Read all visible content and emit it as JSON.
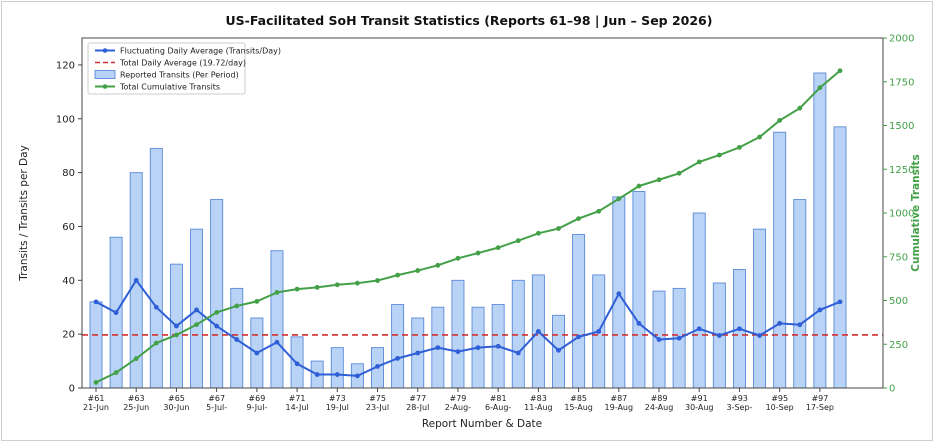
{
  "chart_data": {
    "type": "bar+line",
    "title": "US-Facilitated SoH Transit Statistics (Reports 61–98 | Jun – Sep 2026)",
    "xlabel": "Report Number & Date",
    "ylabel_left": "Transits / Transits per Day",
    "ylabel_right": "Cumulative Transits",
    "ylim_left": [
      0,
      130
    ],
    "ylim_right": [
      0,
      2000
    ],
    "yticks_left": [
      "0",
      "20",
      "40",
      "60",
      "80",
      "100",
      "120"
    ],
    "yticks_right": [
      "0",
      "250",
      "500",
      "750",
      "1000",
      "1250",
      "1500",
      "1750",
      "2000"
    ],
    "grid": false,
    "legend_position": "top-left",
    "x_tick_labels": [
      {
        "report": "#61",
        "date": "21-Jun"
      },
      {
        "report": "#63",
        "date": "25-Jun"
      },
      {
        "report": "#65",
        "date": "30-Jun"
      },
      {
        "report": "#67",
        "date": "5-Jul-"
      },
      {
        "report": "#69",
        "date": "9-Jul-"
      },
      {
        "report": "#71",
        "date": "14-Jul"
      },
      {
        "report": "#73",
        "date": "19-Jul"
      },
      {
        "report": "#75",
        "date": "23-Jul"
      },
      {
        "report": "#77",
        "date": "28-Jul"
      },
      {
        "report": "#79",
        "date": "2-Aug-"
      },
      {
        "report": "#81",
        "date": "6-Aug-"
      },
      {
        "report": "#83",
        "date": "11-Aug"
      },
      {
        "report": "#85",
        "date": "15-Aug"
      },
      {
        "report": "#87",
        "date": "19-Aug"
      },
      {
        "report": "#89",
        "date": "24-Aug"
      },
      {
        "report": "#91",
        "date": "30-Aug"
      },
      {
        "report": "#93",
        "date": "3-Sep-"
      },
      {
        "report": "#95",
        "date": "10-Sep"
      },
      {
        "report": "#97",
        "date": "17-Sep"
      }
    ],
    "series": [
      {
        "name": "Reported Transits (Per Period)",
        "type": "bar",
        "axis": "left",
        "color": "#b9d3f7",
        "edge_color": "#5b8ad6",
        "values": [
          32,
          56,
          80,
          89,
          46,
          59,
          70,
          37,
          26,
          51,
          19,
          10,
          15,
          9,
          15,
          31,
          26,
          30,
          40,
          30,
          31,
          40,
          42,
          27,
          57,
          42,
          71,
          73,
          36,
          37,
          65,
          39,
          44,
          59,
          95,
          70,
          117,
          97
        ]
      },
      {
        "name": "Fluctuating Daily Average (Transits/Day)",
        "type": "line",
        "axis": "left",
        "color": "#2f5fd6",
        "values": [
          32,
          28,
          40,
          30,
          23,
          29,
          23,
          18,
          13,
          17,
          9,
          5,
          5,
          4.5,
          8,
          11,
          13,
          15,
          13.5,
          15,
          15.5,
          13,
          21,
          14,
          19,
          21,
          35,
          24,
          18,
          18.5,
          22,
          19.5,
          22,
          19.5,
          24,
          23.5,
          29,
          32
        ]
      },
      {
        "name": "Total Daily Average (19.72/day)",
        "type": "hline",
        "axis": "left",
        "color": "#d32f2f",
        "value": 19.72
      },
      {
        "name": "Total Cumulative Transits",
        "type": "line",
        "axis": "right",
        "color": "#43a047",
        "values": [
          32,
          88,
          168,
          257,
          303,
          362,
          432,
          469,
          495,
          546,
          565,
          575,
          590,
          599,
          614,
          645,
          671,
          701,
          741,
          771,
          802,
          842,
          884,
          911,
          968,
          1010,
          1081,
          1154,
          1190,
          1227,
          1292,
          1331,
          1375,
          1434,
          1529,
          1599,
          1716,
          1813
        ]
      }
    ]
  }
}
